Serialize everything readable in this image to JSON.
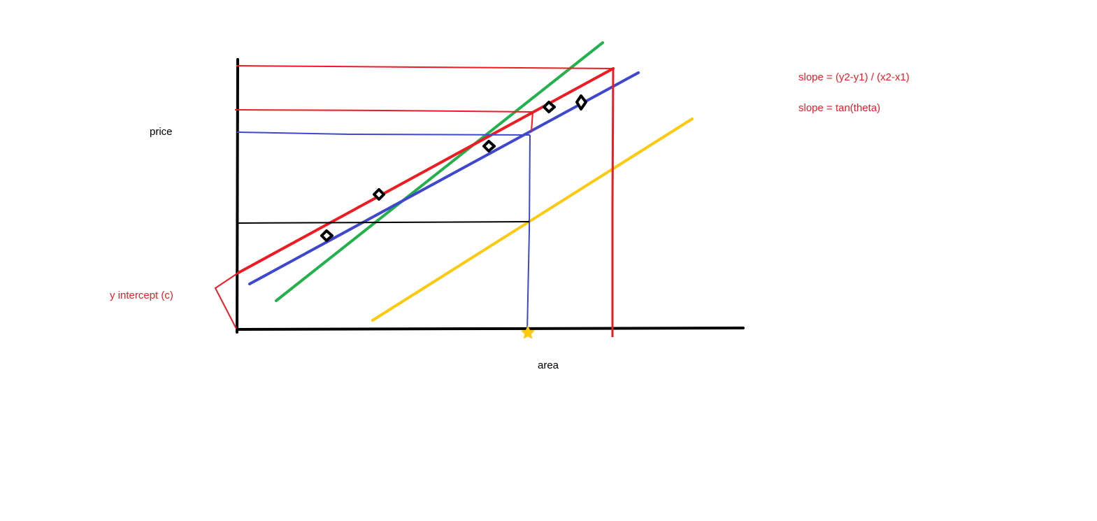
{
  "labels": {
    "y_axis": "price",
    "x_axis": "area",
    "y_intercept": "y intercept (c)",
    "slope_formula": "slope = (y2-y1) / (x2-x1)",
    "slope_tan": "slope = tan(theta)"
  },
  "colors": {
    "axis": "#000000",
    "red": "#ed1c24",
    "blue": "#3f48cc",
    "green": "#22b14c",
    "yellow": "#ffc90e",
    "annotation_text": "#ed1c24",
    "axis_text": "#000000"
  },
  "icons": {
    "data_point": "diamond-outline",
    "prediction_marker": "star"
  }
}
